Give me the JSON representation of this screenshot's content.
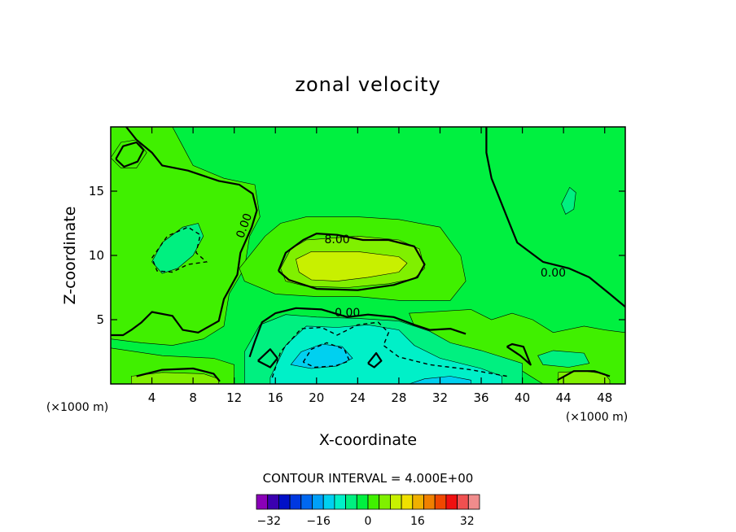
{
  "chart_data": {
    "type": "heatmap",
    "title": "zonal velocity",
    "xlabel": "X-coordinate",
    "ylabel": "Z-coordinate",
    "x_unit_left": "(×1000 m)",
    "x_unit_right": "(×1000 m)",
    "xlim": [
      0,
      50
    ],
    "ylim": [
      0,
      20
    ],
    "x_ticks": [
      4,
      8,
      12,
      16,
      20,
      24,
      28,
      32,
      36,
      40,
      44,
      48
    ],
    "y_ticks": [
      5,
      10,
      15
    ],
    "contour_interval_text": "CONTOUR INTERVAL = 4.000E+00",
    "contour_interval": 4.0,
    "contour_labels": [
      {
        "text": "0.00",
        "x": 13,
        "z": 12.3,
        "angle": -70
      },
      {
        "text": "8.00",
        "x": 22,
        "z": 11.2,
        "angle": 0
      },
      {
        "text": "0.00",
        "x": 23,
        "z": 5.5,
        "angle": 0
      },
      {
        "text": "0.00",
        "x": 43,
        "z": 8.6,
        "angle": 0
      }
    ],
    "colorbar": {
      "min": -36,
      "max": 36,
      "step": 4,
      "colors": [
        "#8a00b8",
        "#3b00b0",
        "#0010c8",
        "#0038e0",
        "#0068f0",
        "#00a0f8",
        "#00d0f0",
        "#00f0c8",
        "#00f080",
        "#00f040",
        "#40f000",
        "#80f000",
        "#c8f000",
        "#f0e000",
        "#f0b000",
        "#f08000",
        "#f04800",
        "#f01010",
        "#f05050",
        "#f08c8c"
      ],
      "tick_values": [
        -32,
        -16,
        0,
        16,
        32
      ],
      "tick_labels": [
        "−32",
        "−16",
        "0",
        "16",
        "32"
      ]
    },
    "regions": [
      {
        "level": 0,
        "color": "#00f040",
        "outline": [
          [
            0,
            20
          ],
          [
            50,
            20
          ],
          [
            50,
            0
          ],
          [
            0,
            0
          ]
        ]
      },
      {
        "level": 4,
        "color": "#40f000",
        "outline": [
          [
            0,
            20
          ],
          [
            6,
            20
          ],
          [
            7,
            18.5
          ],
          [
            8,
            17
          ],
          [
            11,
            16
          ],
          [
            14,
            15.5
          ],
          [
            14.5,
            13
          ],
          [
            13.5,
            11.5
          ],
          [
            13,
            9
          ],
          [
            11.5,
            7
          ],
          [
            11,
            4.5
          ],
          [
            9,
            3.5
          ],
          [
            6,
            3
          ],
          [
            3,
            3.2
          ],
          [
            0,
            3.5
          ]
        ]
      },
      {
        "level": 4,
        "color": "#40f000",
        "outline": [
          [
            15,
            11.5
          ],
          [
            16.5,
            12.5
          ],
          [
            19,
            13
          ],
          [
            24,
            13
          ],
          [
            28,
            12.8
          ],
          [
            32,
            12.2
          ],
          [
            34,
            10
          ],
          [
            34.5,
            8
          ],
          [
            33,
            6.5
          ],
          [
            28,
            6.5
          ],
          [
            24,
            6.8
          ],
          [
            20,
            6.8
          ],
          [
            16,
            7
          ],
          [
            13,
            8
          ],
          [
            12.5,
            9
          ],
          [
            14,
            10.5
          ]
        ]
      },
      {
        "level": 4,
        "color": "#40f000",
        "outline": [
          [
            0,
            2.8
          ],
          [
            5,
            2.2
          ],
          [
            10,
            2
          ],
          [
            12,
            1.5
          ],
          [
            12,
            0
          ],
          [
            0,
            0
          ]
        ]
      },
      {
        "level": 4,
        "color": "#40f000",
        "outline": [
          [
            29,
            5.5
          ],
          [
            35,
            5.8
          ],
          [
            37,
            5
          ],
          [
            39,
            5.5
          ],
          [
            41,
            5
          ],
          [
            43,
            4
          ],
          [
            46,
            4.5
          ],
          [
            48,
            4.2
          ],
          [
            50,
            4
          ],
          [
            50,
            0
          ],
          [
            42,
            0
          ],
          [
            40,
            1
          ],
          [
            37,
            2
          ],
          [
            34,
            3
          ],
          [
            30,
            3.5
          ]
        ]
      },
      {
        "level": 4,
        "color": "#40f000",
        "outline": [
          [
            0,
            17.6
          ],
          [
            1,
            18.8
          ],
          [
            2.5,
            19
          ],
          [
            3.5,
            18
          ],
          [
            2.5,
            16.8
          ],
          [
            1,
            16.8
          ]
        ]
      },
      {
        "level": 8,
        "color": "#80f000",
        "outline": [
          [
            16.5,
            9
          ],
          [
            17.5,
            10.5
          ],
          [
            19,
            11.2
          ],
          [
            24,
            11.5
          ],
          [
            28,
            11.2
          ],
          [
            30,
            10.5
          ],
          [
            30.5,
            9
          ],
          [
            29.5,
            8.2
          ],
          [
            27,
            7.8
          ],
          [
            23,
            7.5
          ],
          [
            19,
            7.6
          ],
          [
            17,
            8
          ]
        ]
      },
      {
        "level": 8,
        "color": "#80f000",
        "outline": [
          [
            2,
            0.6
          ],
          [
            5,
            0.9
          ],
          [
            9,
            0.8
          ],
          [
            10.5,
            0.4
          ],
          [
            10.5,
            0
          ],
          [
            2,
            0
          ]
        ]
      },
      {
        "level": 8,
        "color": "#80f000",
        "outline": [
          [
            43.5,
            0.9
          ],
          [
            46,
            1
          ],
          [
            48,
            0.8
          ],
          [
            48.5,
            0.3
          ],
          [
            48.5,
            0
          ],
          [
            43.5,
            0
          ]
        ]
      },
      {
        "level": 12,
        "color": "#c8f000",
        "outline": [
          [
            18,
            9.7
          ],
          [
            19.5,
            10.3
          ],
          [
            24,
            10.3
          ],
          [
            28,
            9.9
          ],
          [
            28.8,
            9.4
          ],
          [
            28,
            8.7
          ],
          [
            25,
            8.3
          ],
          [
            22,
            8
          ],
          [
            19.5,
            8.1
          ],
          [
            18.3,
            8.7
          ]
        ]
      },
      {
        "level": -4,
        "color": "#00f080",
        "outline": [
          [
            4,
            9.5
          ],
          [
            5,
            11
          ],
          [
            7,
            12.2
          ],
          [
            8.5,
            12.5
          ],
          [
            9,
            11.5
          ],
          [
            8,
            10
          ],
          [
            6.5,
            9
          ],
          [
            5,
            8.6
          ]
        ]
      },
      {
        "level": -4,
        "color": "#00f080",
        "outline": [
          [
            13,
            2.5
          ],
          [
            14.5,
            4.6
          ],
          [
            17,
            5.4
          ],
          [
            20,
            5.2
          ],
          [
            24,
            5.1
          ],
          [
            28,
            4.9
          ],
          [
            31,
            4.1
          ],
          [
            33,
            3.2
          ],
          [
            36,
            2.6
          ],
          [
            40,
            1.6
          ],
          [
            40,
            0
          ],
          [
            13,
            0
          ]
        ]
      },
      {
        "level": -4,
        "color": "#00f080",
        "outline": [
          [
            41.5,
            2.2
          ],
          [
            43,
            2.6
          ],
          [
            46,
            2.4
          ],
          [
            46.5,
            1.6
          ],
          [
            44.5,
            1.3
          ],
          [
            42,
            1.5
          ]
        ]
      },
      {
        "level": -4,
        "color": "#00f080",
        "outline": [
          [
            43.8,
            14
          ],
          [
            44.6,
            15.3
          ],
          [
            45.2,
            14.9
          ],
          [
            45,
            13.6
          ],
          [
            44.2,
            13.2
          ]
        ]
      },
      {
        "level": -8,
        "color": "#00f0c8",
        "outline": [
          [
            15.5,
            0.5
          ],
          [
            17,
            3
          ],
          [
            19,
            4.5
          ],
          [
            22,
            4.4
          ],
          [
            25,
            4.6
          ],
          [
            28,
            4.2
          ],
          [
            29.5,
            3
          ],
          [
            32,
            2
          ],
          [
            36,
            1.2
          ],
          [
            38,
            0.6
          ],
          [
            38,
            0
          ],
          [
            15.5,
            0
          ]
        ]
      },
      {
        "level": -12,
        "color": "#00d0f0",
        "outline": [
          [
            17.5,
            1.5
          ],
          [
            18.5,
            2.5
          ],
          [
            20.5,
            3.1
          ],
          [
            22.5,
            2.9
          ],
          [
            23.5,
            2
          ],
          [
            22,
            1.4
          ],
          [
            19.5,
            1.2
          ]
        ]
      },
      {
        "level": -12,
        "color": "#00d0f0",
        "outline": [
          [
            29,
            0
          ],
          [
            30.5,
            0.4
          ],
          [
            33,
            0.6
          ],
          [
            35,
            0.3
          ],
          [
            35,
            0
          ],
          [
            29,
            0
          ]
        ]
      }
    ],
    "solid_lines": [
      {
        "level": 0,
        "points": [
          [
            1.5,
            20
          ],
          [
            2.5,
            19
          ],
          [
            4,
            18
          ],
          [
            5,
            17
          ],
          [
            7.5,
            16.6
          ],
          [
            10.5,
            15.8
          ],
          [
            12.5,
            15.5
          ],
          [
            13.8,
            14.8
          ],
          [
            14.2,
            13.5
          ],
          [
            13.7,
            12.2
          ],
          [
            12.6,
            10.2
          ],
          [
            12.3,
            8.5
          ],
          [
            11,
            6.6
          ],
          [
            10.5,
            4.9
          ],
          [
            8.5,
            4
          ],
          [
            7,
            4.2
          ],
          [
            6,
            5.3
          ],
          [
            4,
            5.6
          ],
          [
            3,
            4.8
          ],
          [
            2,
            4.2
          ],
          [
            1.2,
            3.8
          ],
          [
            0,
            3.8
          ]
        ]
      },
      {
        "level": 0,
        "points": [
          [
            36.5,
            20
          ],
          [
            36.5,
            18
          ],
          [
            37,
            16
          ],
          [
            38.5,
            13
          ],
          [
            39.5,
            11
          ],
          [
            42,
            9.5
          ],
          [
            44.5,
            9
          ],
          [
            46.5,
            8.3
          ],
          [
            48.5,
            7
          ],
          [
            50,
            6
          ]
        ]
      },
      {
        "level": 0,
        "points": [
          [
            13.5,
            2.1
          ],
          [
            14,
            3.3
          ],
          [
            14.7,
            4.8
          ],
          [
            16,
            5.5
          ],
          [
            18,
            5.9
          ],
          [
            20.5,
            5.8
          ],
          [
            23,
            5.2
          ],
          [
            25,
            5.4
          ],
          [
            27.5,
            5.2
          ],
          [
            29.5,
            4.6
          ],
          [
            31,
            4.2
          ],
          [
            33,
            4.3
          ],
          [
            34.5,
            3.9
          ]
        ]
      },
      {
        "level": 8,
        "points": [
          [
            16.3,
            8.8
          ],
          [
            17,
            10.2
          ],
          [
            18.7,
            11.2
          ],
          [
            20,
            11.7
          ],
          [
            22,
            11.6
          ],
          [
            24.5,
            11.2
          ],
          [
            27,
            11.2
          ],
          [
            29.5,
            10.7
          ],
          [
            30.5,
            9.3
          ],
          [
            29.8,
            8.3
          ],
          [
            27.5,
            7.7
          ],
          [
            24,
            7.3
          ],
          [
            20,
            7.4
          ],
          [
            17.3,
            8.1
          ],
          [
            16.3,
            8.8
          ]
        ]
      },
      {
        "level": 0,
        "points": [
          [
            0.5,
            17.5
          ],
          [
            1.2,
            18.5
          ],
          [
            2.5,
            18.8
          ],
          [
            3.2,
            18.2
          ],
          [
            2.6,
            17.3
          ],
          [
            1.3,
            16.9
          ],
          [
            0.5,
            17.5
          ]
        ]
      },
      {
        "level": 0,
        "points": [
          [
            2.5,
            0.6
          ],
          [
            5,
            1.1
          ],
          [
            8,
            1.2
          ],
          [
            10,
            0.8
          ],
          [
            10.6,
            0.2
          ]
        ]
      },
      {
        "level": 0,
        "points": [
          [
            43.4,
            0.3
          ],
          [
            45,
            1
          ],
          [
            47,
            1
          ],
          [
            48.5,
            0.6
          ]
        ]
      },
      {
        "level": 0,
        "points": [
          [
            38.5,
            2.9
          ],
          [
            39.8,
            2.2
          ],
          [
            40.8,
            1.5
          ],
          [
            40.1,
            2.9
          ],
          [
            39,
            3.1
          ],
          [
            38.5,
            2.9
          ]
        ]
      },
      {
        "level": 0,
        "points": [
          [
            14.3,
            1.8
          ],
          [
            15.5,
            2.7
          ],
          [
            16.2,
            2
          ],
          [
            15.5,
            1.3
          ],
          [
            14.3,
            1.8
          ]
        ]
      },
      {
        "level": 0,
        "points": [
          [
            25,
            1.6
          ],
          [
            25.8,
            2.4
          ],
          [
            26.3,
            1.8
          ],
          [
            25.6,
            1.3
          ],
          [
            25,
            1.6
          ]
        ]
      }
    ],
    "dashed_lines": [
      {
        "level": -4,
        "points": [
          [
            15.7,
            0.5
          ],
          [
            16.5,
            2.5
          ],
          [
            18.5,
            4.3
          ],
          [
            20.5,
            4.4
          ],
          [
            22,
            3.8
          ],
          [
            24,
            4.6
          ],
          [
            26,
            4.8
          ],
          [
            27,
            4
          ],
          [
            26.5,
            3
          ],
          [
            28,
            2.1
          ],
          [
            31,
            1.5
          ],
          [
            35,
            1.1
          ],
          [
            38.5,
            0.6
          ]
        ]
      },
      {
        "level": -4,
        "points": [
          [
            4,
            9.8
          ],
          [
            5.5,
            11.5
          ],
          [
            7.5,
            12.2
          ],
          [
            8.7,
            11.6
          ],
          [
            8.3,
            10.2
          ],
          [
            9.3,
            9.5
          ],
          [
            7.5,
            9.3
          ],
          [
            6,
            8.7
          ],
          [
            4.5,
            8.8
          ],
          [
            4,
            9.8
          ]
        ]
      },
      {
        "level": -8,
        "points": [
          [
            18.7,
            1.7
          ],
          [
            19.5,
            2.7
          ],
          [
            21,
            3.2
          ],
          [
            22.7,
            2.7
          ],
          [
            23.2,
            1.8
          ],
          [
            21.8,
            1.4
          ],
          [
            19.8,
            1.3
          ],
          [
            18.7,
            1.7
          ]
        ]
      }
    ]
  }
}
